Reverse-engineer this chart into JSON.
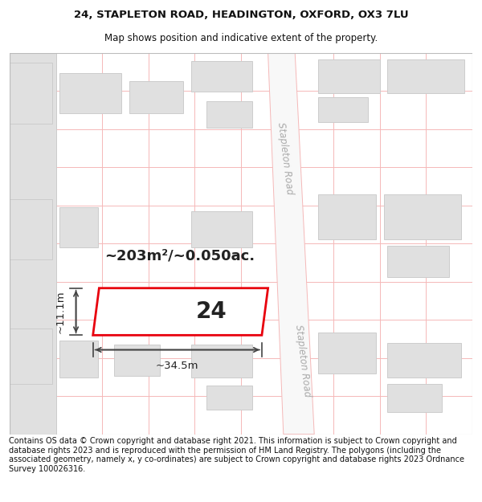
{
  "title_line1": "24, STAPLETON ROAD, HEADINGTON, OXFORD, OX3 7LU",
  "title_line2": "Map shows position and indicative extent of the property.",
  "footer_text": "Contains OS data © Crown copyright and database right 2021. This information is subject to Crown copyright and database rights 2023 and is reproduced with the permission of HM Land Registry. The polygons (including the associated geometry, namely x, y co-ordinates) are subject to Crown copyright and database rights 2023 Ordnance Survey 100026316.",
  "area_text": "~203m²/~0.050ac.",
  "number_text": "24",
  "dim_width": "~34.5m",
  "dim_height": "~11.1m",
  "bg_color": "#ffffff",
  "map_bg": "#ffffff",
  "highlight_fill": "#ffffff",
  "highlight_stroke": "#e8000d",
  "road_label1": "Stapleton Road",
  "road_label2": "Stapleton Road",
  "grid_line_color": "#f5b8b8",
  "block_fill": "#e0e0e0",
  "block_stroke": "#cccccc",
  "title_fontsize": 9.5,
  "footer_fontsize": 7.0
}
